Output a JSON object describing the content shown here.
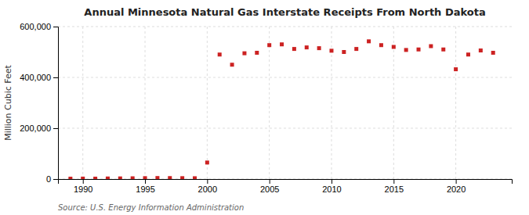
{
  "chart_data": {
    "type": "scatter",
    "title": "Annual Minnesota Natural Gas Interstate Receipts From North Dakota",
    "ylabel": "Million Cubic Feet",
    "source": "Source: U.S. Energy Information Administration",
    "x": [
      1989,
      1990,
      1991,
      1992,
      1993,
      1994,
      1995,
      1996,
      1997,
      1998,
      1999,
      2000,
      2001,
      2002,
      2003,
      2004,
      2005,
      2006,
      2007,
      2008,
      2009,
      2010,
      2011,
      2012,
      2013,
      2014,
      2015,
      2016,
      2017,
      2018,
      2019,
      2020,
      2021,
      2022,
      2023
    ],
    "values": [
      1500,
      1800,
      1600,
      2200,
      2500,
      3000,
      3500,
      4000,
      3800,
      3500,
      3200,
      65000,
      490000,
      450000,
      495000,
      497000,
      527000,
      530000,
      512000,
      518000,
      515000,
      505000,
      500000,
      512000,
      542000,
      527000,
      520000,
      508000,
      510000,
      523000,
      510000,
      432000,
      490000,
      506000,
      497000
    ],
    "color": "#cc2222",
    "marker": "square",
    "xlim": [
      1988.0,
      2024.5
    ],
    "ylim": [
      0,
      600000
    ],
    "xticks": [
      1990,
      1995,
      2000,
      2005,
      2010,
      2015,
      2020
    ],
    "yticks": [
      0,
      {
        "value": 200000,
        "label": "200,000"
      },
      {
        "value": 400000,
        "label": "400,000"
      },
      {
        "value": 600000,
        "label": "600,000"
      }
    ],
    "grid": true
  }
}
